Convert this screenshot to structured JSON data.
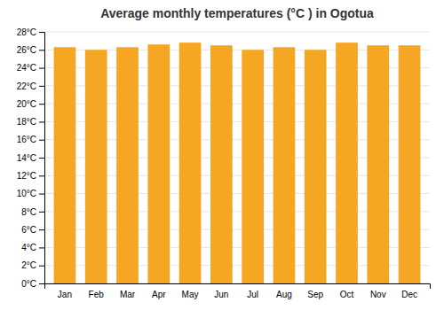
{
  "chart_data": {
    "type": "bar",
    "title": "Average monthly temperatures (°C ) in Ogotua",
    "categories": [
      "Jan",
      "Feb",
      "Mar",
      "Apr",
      "May",
      "Jun",
      "Jul",
      "Aug",
      "Sep",
      "Oct",
      "Nov",
      "Dec"
    ],
    "values": [
      26.3,
      26.0,
      26.3,
      26.6,
      26.8,
      26.5,
      26.0,
      26.3,
      26.0,
      26.8,
      26.5,
      26.5
    ],
    "color": "#F5A623",
    "ylim": [
      0,
      28
    ],
    "yticks": [
      {
        "value": 0,
        "label": "0°C"
      },
      {
        "value": 2,
        "label": "2°C"
      },
      {
        "value": 4,
        "label": "4°C"
      },
      {
        "value": 6,
        "label": "6°C"
      },
      {
        "value": 8,
        "label": "8°C"
      },
      {
        "value": 10,
        "label": "10°C"
      },
      {
        "value": 12,
        "label": "12°C"
      },
      {
        "value": 14,
        "label": "14°C"
      },
      {
        "value": 16,
        "label": "16°C"
      },
      {
        "value": 18,
        "label": "18°C"
      },
      {
        "value": 20,
        "label": "20°C"
      },
      {
        "value": 22,
        "label": "22°C"
      },
      {
        "value": 24,
        "label": "24°C"
      },
      {
        "value": 26,
        "label": "26°C"
      },
      {
        "value": 28,
        "label": "28°C"
      }
    ],
    "grid": true
  }
}
